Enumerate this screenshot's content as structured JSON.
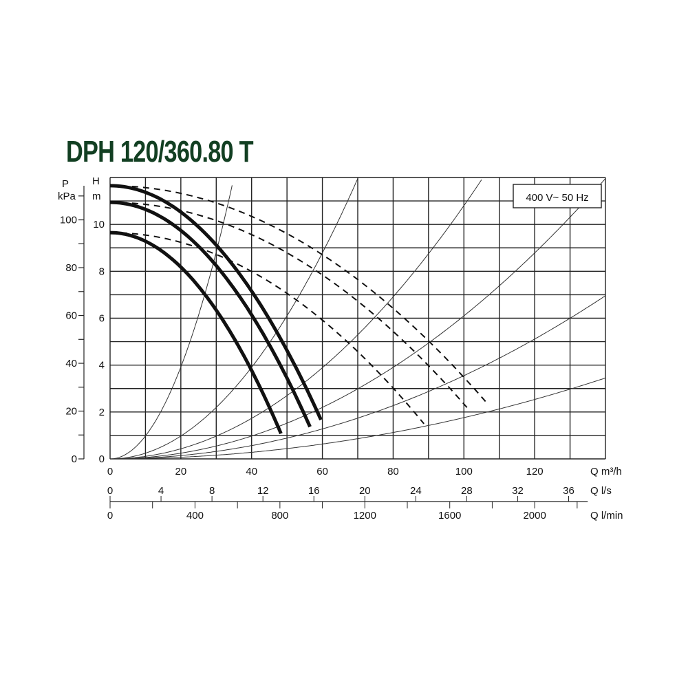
{
  "chart_data": {
    "type": "line",
    "title": "DPH 120/360.80 T",
    "annotation": "400 V~ 50 Hz",
    "xlabel": "Q m³/h",
    "xlim": [
      0,
      140
    ],
    "x_ticks": [
      "0",
      "20",
      "40",
      "60",
      "80",
      "100",
      "120"
    ],
    "ylabel_H": [
      "H",
      "m"
    ],
    "ylim": [
      0,
      12
    ],
    "y_ticks": [
      "0",
      "2",
      "4",
      "6",
      "8",
      "10"
    ],
    "ylabel_P": [
      "P",
      "kPa"
    ],
    "p_ticks": [
      "0",
      "20",
      "40",
      "60",
      "80",
      "100"
    ],
    "secondary_x_ls": {
      "label": "Q l/s",
      "ticks": [
        "0",
        "4",
        "8",
        "12",
        "16",
        "20",
        "24",
        "28",
        "32",
        "36"
      ]
    },
    "secondary_x_lmin": {
      "label": "Q l/min",
      "ticks": [
        "0",
        "400",
        "800",
        "1200",
        "1600",
        "2000"
      ]
    },
    "grid": true,
    "pump_curves": [
      {
        "style": "solid",
        "H0": 11.65,
        "Qmax": 59.6,
        "Hend": 1.67
      },
      {
        "style": "solid",
        "H0": 10.94,
        "Qmax": 56.5,
        "Hend": 1.37
      },
      {
        "style": "solid",
        "H0": 9.65,
        "Qmax": 48.3,
        "Hend": 1.08
      },
      {
        "style": "dashed",
        "H0": 11.65,
        "Qmax": 106.4,
        "Hend": 2.4
      },
      {
        "style": "dashed",
        "H0": 10.94,
        "Qmax": 101.4,
        "Hend": 2.1
      },
      {
        "style": "dashed",
        "H0": 9.65,
        "Qmax": 88.7,
        "Hend": 1.5
      }
    ],
    "system_curves_coefficient": [
      0.0098,
      0.00244,
      0.00108,
      0.00061,
      0.000355,
      0.000176
    ]
  }
}
